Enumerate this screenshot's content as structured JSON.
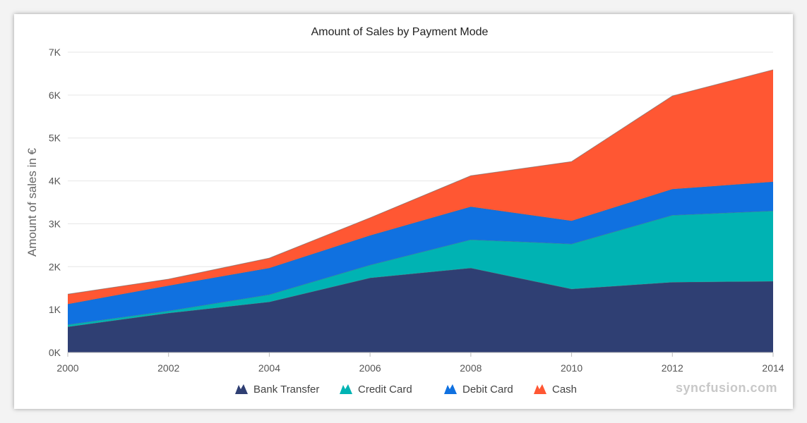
{
  "chart_data": {
    "type": "area",
    "stacked": true,
    "title": "Amount of Sales by Payment Mode",
    "xlabel": "",
    "ylabel": "Amount of sales in €",
    "x": [
      2000,
      2002,
      2004,
      2006,
      2008,
      2010,
      2012,
      2014
    ],
    "x_tick_labels": [
      "2000",
      "2002",
      "2004",
      "2006",
      "2008",
      "2010",
      "2012",
      "2014"
    ],
    "ylim": [
      0,
      7000
    ],
    "y_tick_labels": [
      "0K",
      "1K",
      "2K",
      "3K",
      "4K",
      "5K",
      "6K",
      "7K"
    ],
    "grid": true,
    "legend_position": "bottom",
    "series": [
      {
        "name": "Bank Transfer",
        "color": "#2f3f73",
        "values": [
          600,
          920,
          1180,
          1740,
          1970,
          1480,
          1640,
          1660
        ]
      },
      {
        "name": "Credit Card",
        "color": "#00b3b3",
        "values": [
          50,
          50,
          170,
          300,
          660,
          1050,
          1560,
          1640
        ]
      },
      {
        "name": "Debit Card",
        "color": "#1071e0",
        "values": [
          480,
          590,
          620,
          690,
          770,
          540,
          610,
          680
        ]
      },
      {
        "name": "Cash",
        "color": "#ff5733",
        "values": [
          230,
          150,
          230,
          410,
          720,
          1380,
          2170,
          2610
        ]
      }
    ]
  },
  "watermark": "syncfusion.com"
}
